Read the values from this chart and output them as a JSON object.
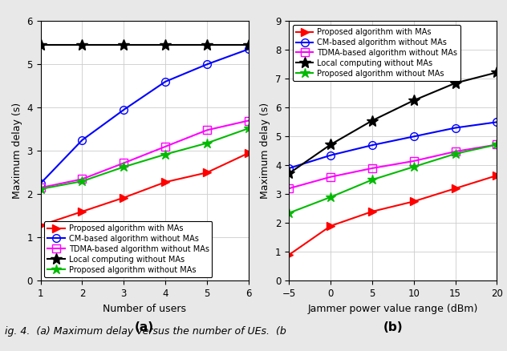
{
  "subplot_a": {
    "x": [
      1,
      2,
      3,
      4,
      5,
      6
    ],
    "proposed_with_MA": [
      1.28,
      1.6,
      1.92,
      2.28,
      2.5,
      2.95
    ],
    "CM_without_MA": [
      2.25,
      3.25,
      3.95,
      4.6,
      5.0,
      5.35
    ],
    "TDMA_without_MA": [
      2.15,
      2.35,
      2.72,
      3.1,
      3.48,
      3.7
    ],
    "local_without_MA": [
      5.45,
      5.45,
      5.45,
      5.45,
      5.45,
      5.45
    ],
    "proposed_without_MA": [
      2.12,
      2.3,
      2.63,
      2.92,
      3.18,
      3.52
    ],
    "xlabel": "Number of users",
    "ylabel": "Maximum delay (s)",
    "label": "(a)",
    "ylim": [
      0,
      6
    ],
    "yticks": [
      0,
      1,
      2,
      3,
      4,
      5,
      6
    ],
    "xlim": [
      1,
      6
    ],
    "xticks": [
      1,
      2,
      3,
      4,
      5,
      6
    ],
    "legend_loc": "lower left"
  },
  "subplot_b": {
    "x": [
      -5,
      0,
      5,
      10,
      15,
      20
    ],
    "proposed_with_MA": [
      0.9,
      1.9,
      2.4,
      2.75,
      3.2,
      3.65
    ],
    "CM_without_MA": [
      3.9,
      4.35,
      4.7,
      5.0,
      5.3,
      5.5
    ],
    "TDMA_without_MA": [
      3.2,
      3.6,
      3.9,
      4.15,
      4.48,
      4.72
    ],
    "local_without_MA": [
      3.72,
      4.72,
      5.55,
      6.25,
      6.85,
      7.22
    ],
    "proposed_without_MA": [
      2.35,
      2.9,
      3.5,
      3.95,
      4.4,
      4.72
    ],
    "xlabel": "Jammer power value range (dBm)",
    "ylabel": "Maximum delay (s)",
    "label": "(b)",
    "ylim": [
      0,
      9
    ],
    "yticks": [
      0,
      1,
      2,
      3,
      4,
      5,
      6,
      7,
      8,
      9
    ],
    "xlim": [
      -5,
      20
    ],
    "xticks": [
      -5,
      0,
      5,
      10,
      15,
      20
    ],
    "legend_loc": "upper left"
  },
  "legend_labels": [
    "Proposed algorithm with MAs",
    "CM-based algorithm without MAs",
    "TDMA-based algorithm without MAs",
    "Local computing without MAs",
    "Proposed algorithm without MAs"
  ],
  "keys": [
    "proposed_with_MA",
    "CM_without_MA",
    "TDMA_without_MA",
    "local_without_MA",
    "proposed_without_MA"
  ],
  "colors": {
    "proposed_with_MA": "#ff0000",
    "CM_without_MA": "#0000ff",
    "TDMA_without_MA": "#ff00ff",
    "local_without_MA": "#000000",
    "proposed_without_MA": "#00bb00"
  },
  "markers": {
    "proposed_with_MA": ">",
    "CM_without_MA": "o",
    "TDMA_without_MA": "s",
    "local_without_MA": "*",
    "proposed_without_MA": "*"
  },
  "markersizes": {
    "proposed_with_MA": 7,
    "CM_without_MA": 7,
    "TDMA_without_MA": 7,
    "local_without_MA": 10,
    "proposed_without_MA": 9
  },
  "open_markers": [
    "CM_without_MA",
    "TDMA_without_MA"
  ],
  "figsize": [
    6.32,
    4.38
  ],
  "dpi": 100,
  "caption": "ig. 4.  (a) Maximum delay versus the number of UEs.  (",
  "bg_color": "#e8e8e8"
}
